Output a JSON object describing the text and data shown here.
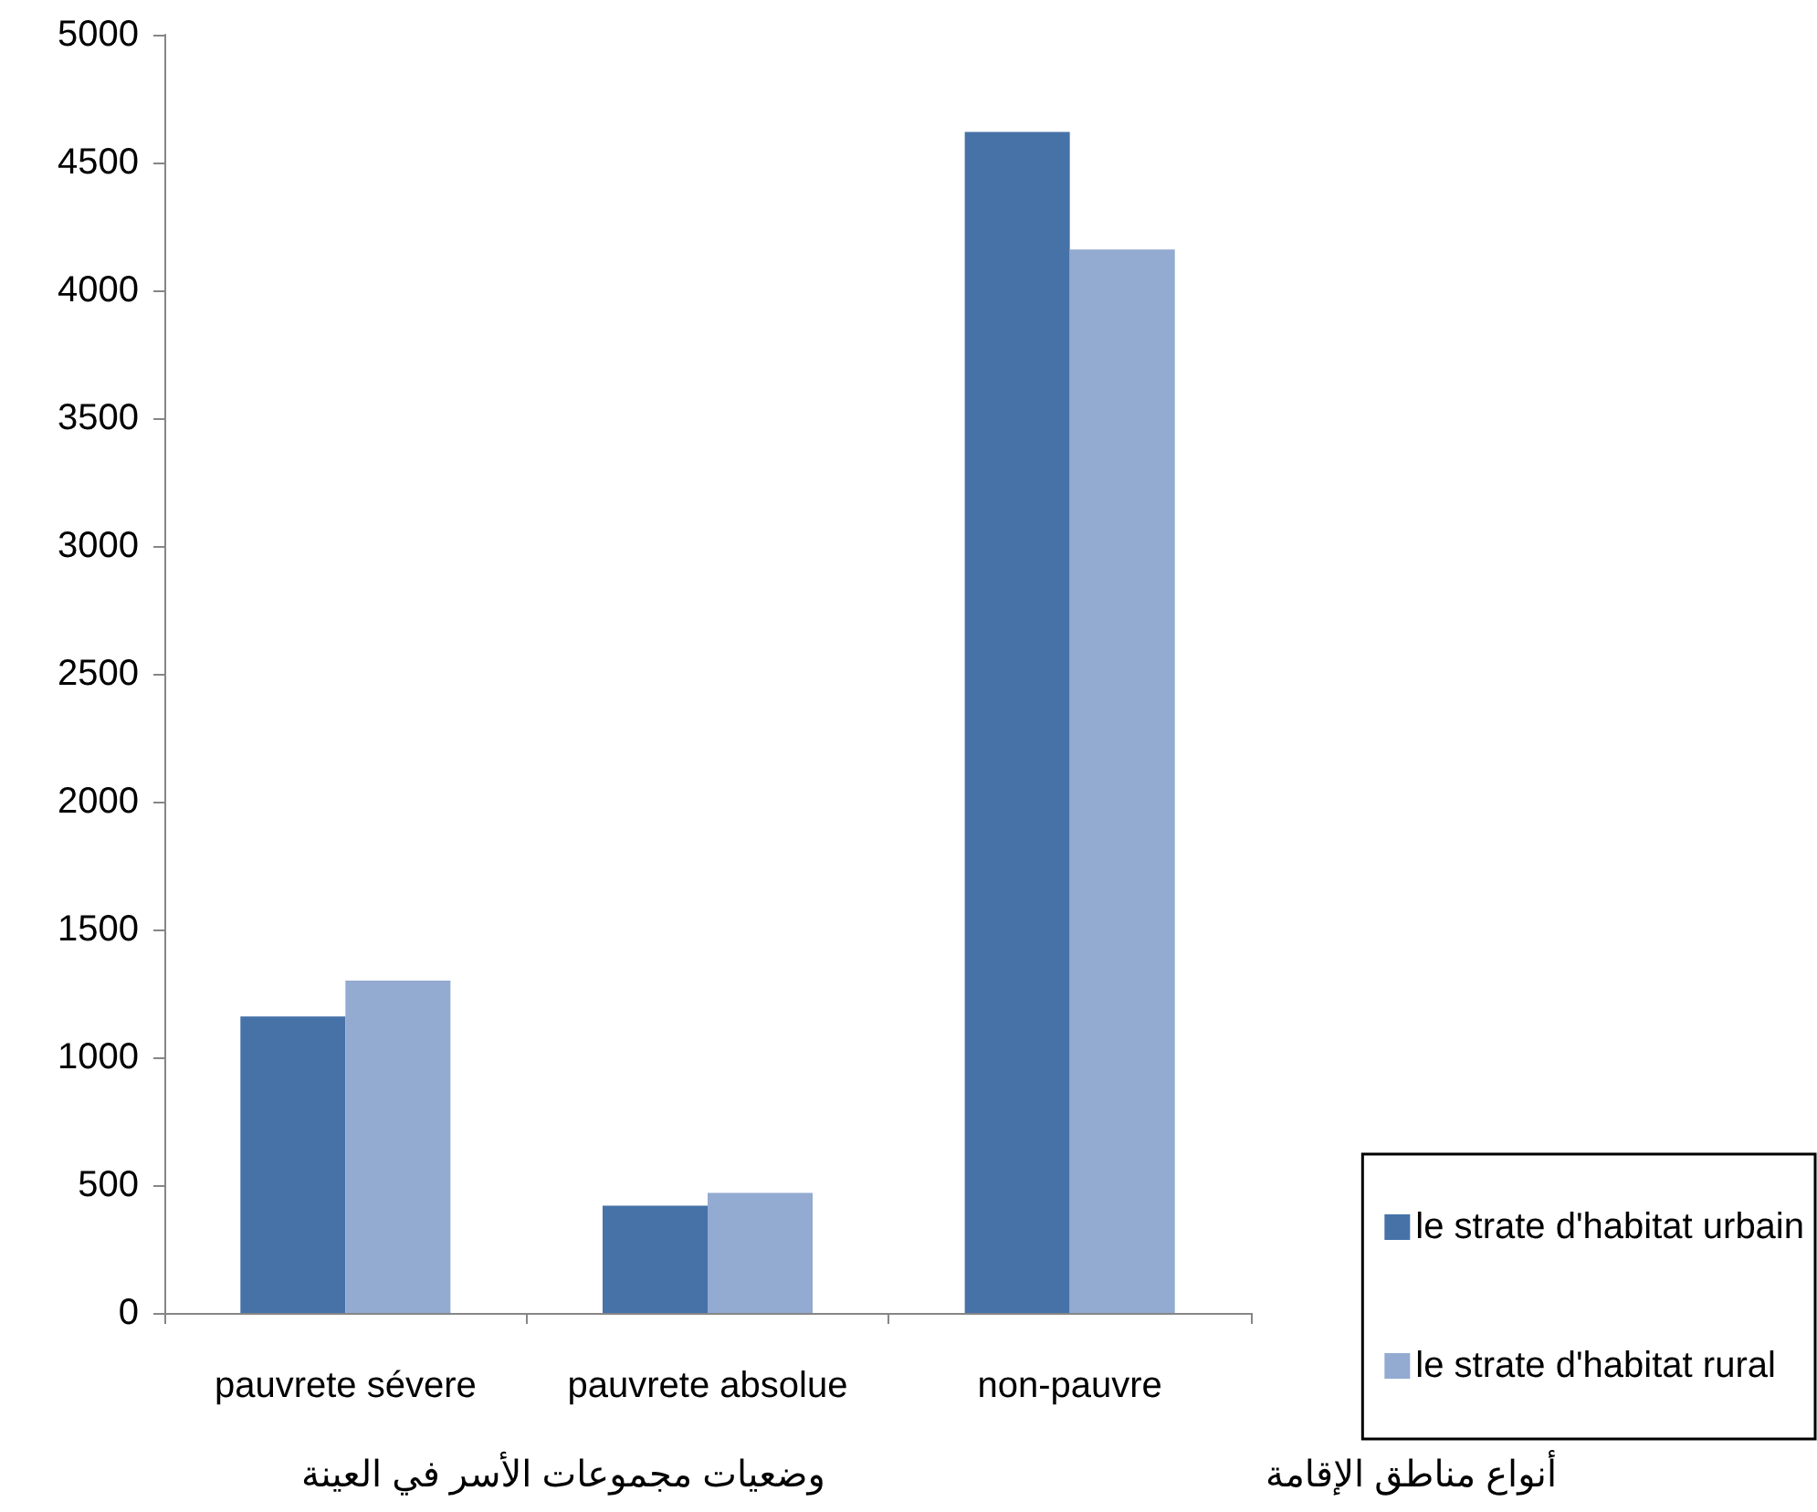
{
  "chart_data": {
    "type": "bar",
    "xlabel": "وضعيات مجموعات الأسر في العينة",
    "legend_title": "أنواع مناطق الإقامة",
    "categories": [
      "pauvrete sévere",
      "pauvrete absolue",
      "non-pauvre"
    ],
    "series": [
      {
        "name": "le strate d'habitat urbain",
        "color": "#4672a8",
        "values": [
          1160,
          420,
          4620
        ]
      },
      {
        "name": "le strate d'habitat rural",
        "color": "#93aad1",
        "values": [
          1300,
          470,
          4160
        ]
      }
    ],
    "ylim": [
      0,
      5000
    ],
    "yticks": [
      0,
      500,
      1000,
      1500,
      2000,
      2500,
      3000,
      3500,
      4000,
      4500,
      5000
    ],
    "grid": false,
    "legend": "bottom right"
  }
}
